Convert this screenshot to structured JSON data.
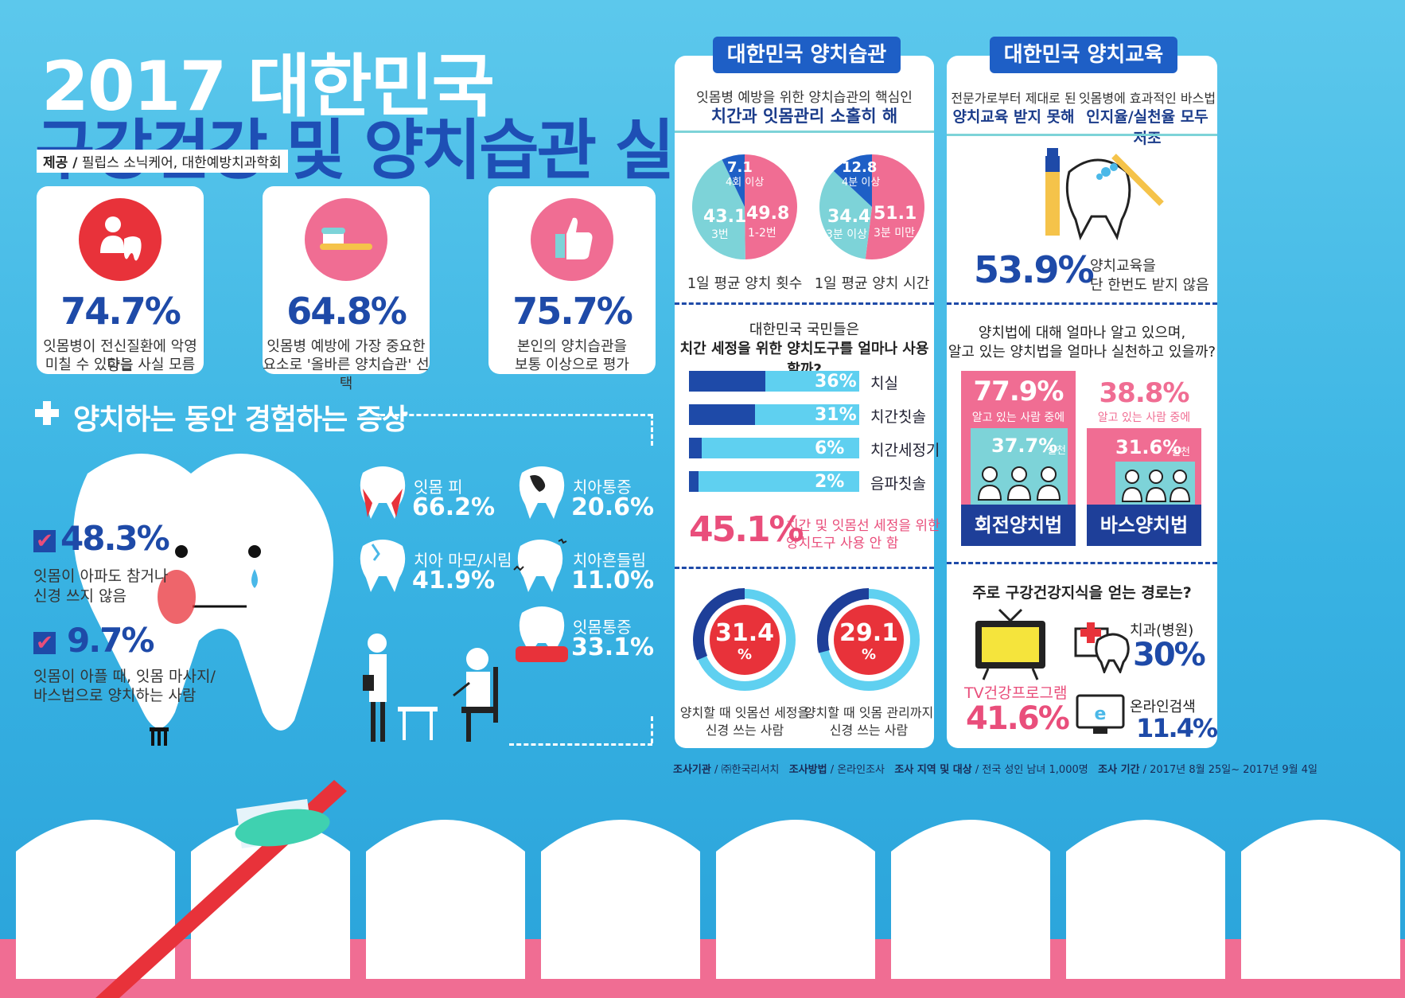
{
  "header": {
    "title_line1": "2017 대한민국",
    "title_line2": "구강건강 및 양치습관 실태조사",
    "provider_label": "제공 /",
    "provider": "필립스 소닉케어, 대한예방치과학회"
  },
  "top_stats": [
    {
      "value": "74.7%",
      "desc_line1": "잇몸병이 전신질환에 악영향을",
      "desc_line2": "미칠 수 있다는 사실 모름"
    },
    {
      "value": "64.8%",
      "desc_line1": "잇몸병 예방에 가장 중요한",
      "desc_line2": "요소로 '올바른 양치습관' 선택"
    },
    {
      "value": "75.7%",
      "desc_line1": "본인의 양치습관을",
      "desc_line2": "보통 이상으로 평가"
    }
  ],
  "symptoms": {
    "section_title": "양치하는 동안 경험하는 증상",
    "left_stats": [
      {
        "value": "48.3%",
        "desc_line1": "잇몸이 아파도 참거나",
        "desc_line2": "신경 쓰지 않음"
      },
      {
        "value": "9.7%",
        "desc_line1": "잇몸이 아플 때, 잇몸 마사지/",
        "desc_line2": "바스법으로 양치하는 사람"
      }
    ],
    "items": [
      {
        "label": "잇몸 피",
        "value": "66.2%"
      },
      {
        "label": "치아통증",
        "value": "20.6%"
      },
      {
        "label": "치아 마모/시림",
        "value": "41.9%"
      },
      {
        "label": "치아흔들림",
        "value": "11.0%"
      },
      {
        "label": "잇몸통증",
        "value": "33.1%"
      }
    ]
  },
  "habits": {
    "ribbon": "대한민국 양치습관",
    "sub_line1": "잇몸병 예방을 위한 양치습관의 핵심인",
    "sub_line2": "치간과 잇몸관리 소홀히 해",
    "pie1": {
      "caption": "1일 평균 양치 횟수",
      "slices": [
        {
          "value": 49.8,
          "value_label": "49.8",
          "name": "1-2번",
          "color": "#f06d93"
        },
        {
          "value": 43.1,
          "value_label": "43.1",
          "name": "3번",
          "color": "#7dd3d8"
        },
        {
          "value": 7.1,
          "value_label": "7.1",
          "name": "4회 이상",
          "color": "#1e5fc6"
        }
      ]
    },
    "pie2": {
      "caption": "1일 평균 양치 시간",
      "slices": [
        {
          "value": 51.1,
          "value_label": "51.1",
          "name": "3분 미만",
          "color": "#f06d93"
        },
        {
          "value": 34.4,
          "value_label": "34.4",
          "name": "3분 이상",
          "color": "#7dd3d8"
        },
        {
          "value": 12.8,
          "value_label": "12.8",
          "name": "4분 이상",
          "color": "#1e5fc6"
        }
      ]
    },
    "tools_q_line1": "대한민국 국민들은",
    "tools_q_line2": "치간 세정을 위한 양치도구를 얼마나 사용할까?",
    "tools": [
      {
        "name": "치실",
        "value": 36,
        "label": "36%"
      },
      {
        "name": "치간칫솔",
        "value": 31,
        "label": "31%"
      },
      {
        "name": "치간세정기",
        "value": 6,
        "label": "6%"
      },
      {
        "name": "음파칫솔",
        "value": 2,
        "label": "2%"
      }
    ],
    "no_tool_value": "45.1%",
    "no_tool_line1": "치간 및 잇몸선 세정을 위한",
    "no_tool_line2": "양치도구 사용 안 함",
    "donuts": [
      {
        "value": 31.4,
        "value_label": "31.4",
        "unit": "%",
        "line1": "양치할 때 잇몸선 세정을",
        "line2": "신경 쓰는 사람"
      },
      {
        "value": 29.1,
        "value_label": "29.1",
        "unit": "%",
        "line1": "양치할 때 잇몸 관리까지",
        "line2": "신경 쓰는 사람"
      }
    ]
  },
  "education": {
    "ribbon": "대한민국 양치교육",
    "col1_line1": "전문가로부터 제대로 된",
    "col1_line2": "양치교육 받지 못해",
    "col2_line1": "잇몸병에 효과적인 바스법",
    "col2_line2": "인지율/실천율 모두 저조",
    "no_edu_value": "53.9%",
    "no_edu_line1": "양치교육을",
    "no_edu_line2": "단 한번도 받지 않음",
    "method_q_line1": "양치법에 대해 얼마나 알고 있으며,",
    "method_q_line2": "알고 있는 양치법을 얼마나 실천하고 있을까?",
    "methods": [
      {
        "known": "77.9%",
        "known_label": "알고 있는 사람 중에",
        "practice": "37.7%",
        "practice_label": "실천",
        "name": "회전양치법",
        "known_value": 77.9
      },
      {
        "known": "38.8%",
        "known_label": "알고 있는 사람 중에",
        "practice": "31.6%",
        "practice_label": "실천",
        "name": "바스양치법",
        "known_value": 38.8
      }
    ],
    "source_q": "주로 구강건강지식을 얻는 경로는?",
    "sources": [
      {
        "name": "TV건강프로그램",
        "value": "41.6%"
      },
      {
        "name": "치과(병원)",
        "value": "30%"
      },
      {
        "name": "온라인검색",
        "value": "11.4%"
      }
    ]
  },
  "footer": {
    "org_label": "조사기관",
    "org": "/ ㈜한국리서치",
    "method_label": "조사방법",
    "method": "/ 온라인조사",
    "target_label": "조사 지역 및 대상",
    "target": "/ 전국 성인 남녀 1,000명",
    "period_label": "조사 기간",
    "period": "/ 2017년 8월 25일~ 2017년 9월 4일"
  },
  "colors": {
    "navy": "#1e4aa8",
    "pink": "#f06d93",
    "red": "#e8323a",
    "mint": "#7dd3d8"
  }
}
